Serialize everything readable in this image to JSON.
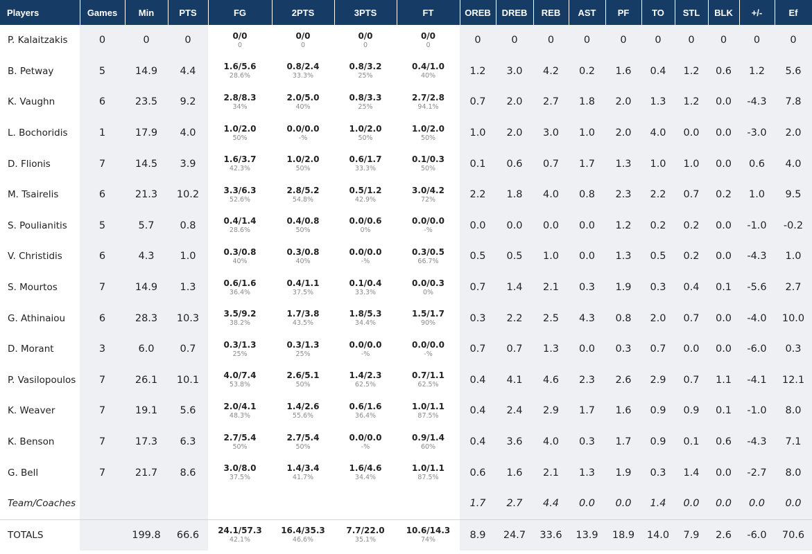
{
  "columns": [
    "Players",
    "Games",
    "Min",
    "PTS",
    "FG",
    "2PTS",
    "3PTS",
    "FT",
    "OREB",
    "DREB",
    "REB",
    "AST",
    "PF",
    "TO",
    "STL",
    "BLK",
    "+/-",
    "Ef"
  ],
  "players": [
    {
      "name": "P. Kalaitzakis",
      "games": "0",
      "min": "0",
      "pts": "0",
      "fg": {
        "made": "0/0",
        "pct": "0"
      },
      "two": {
        "made": "0/0",
        "pct": "0"
      },
      "three": {
        "made": "0/0",
        "pct": "0"
      },
      "ft": {
        "made": "0/0",
        "pct": "0"
      },
      "oreb": "0",
      "dreb": "0",
      "reb": "0",
      "ast": "0",
      "pf": "0",
      "to": "0",
      "stl": "0",
      "blk": "0",
      "pm": "0",
      "ef": "0"
    },
    {
      "name": "B. Petway",
      "games": "5",
      "min": "14.9",
      "pts": "4.4",
      "fg": {
        "made": "1.6/5.6",
        "pct": "28.6%"
      },
      "two": {
        "made": "0.8/2.4",
        "pct": "33.3%"
      },
      "three": {
        "made": "0.8/3.2",
        "pct": "25%"
      },
      "ft": {
        "made": "0.4/1.0",
        "pct": "40%"
      },
      "oreb": "1.2",
      "dreb": "3.0",
      "reb": "4.2",
      "ast": "0.2",
      "pf": "1.6",
      "to": "0.4",
      "stl": "1.2",
      "blk": "0.6",
      "pm": "1.2",
      "ef": "5.6"
    },
    {
      "name": "K. Vaughn",
      "games": "6",
      "min": "23.5",
      "pts": "9.2",
      "fg": {
        "made": "2.8/8.3",
        "pct": "34%"
      },
      "two": {
        "made": "2.0/5.0",
        "pct": "40%"
      },
      "three": {
        "made": "0.8/3.3",
        "pct": "25%"
      },
      "ft": {
        "made": "2.7/2.8",
        "pct": "94.1%"
      },
      "oreb": "0.7",
      "dreb": "2.0",
      "reb": "2.7",
      "ast": "1.8",
      "pf": "2.0",
      "to": "1.3",
      "stl": "1.2",
      "blk": "0.0",
      "pm": "-4.3",
      "ef": "7.8"
    },
    {
      "name": "L. Bochoridis",
      "games": "1",
      "min": "17.9",
      "pts": "4.0",
      "fg": {
        "made": "1.0/2.0",
        "pct": "50%"
      },
      "two": {
        "made": "0.0/0.0",
        "pct": "-%"
      },
      "three": {
        "made": "1.0/2.0",
        "pct": "50%"
      },
      "ft": {
        "made": "1.0/2.0",
        "pct": "50%"
      },
      "oreb": "1.0",
      "dreb": "2.0",
      "reb": "3.0",
      "ast": "1.0",
      "pf": "2.0",
      "to": "4.0",
      "stl": "0.0",
      "blk": "0.0",
      "pm": "-3.0",
      "ef": "2.0"
    },
    {
      "name": "D. Flionis",
      "games": "7",
      "min": "14.5",
      "pts": "3.9",
      "fg": {
        "made": "1.6/3.7",
        "pct": "42.3%"
      },
      "two": {
        "made": "1.0/2.0",
        "pct": "50%"
      },
      "three": {
        "made": "0.6/1.7",
        "pct": "33.3%"
      },
      "ft": {
        "made": "0.1/0.3",
        "pct": "50%"
      },
      "oreb": "0.1",
      "dreb": "0.6",
      "reb": "0.7",
      "ast": "1.7",
      "pf": "1.3",
      "to": "1.0",
      "stl": "1.0",
      "blk": "0.0",
      "pm": "0.6",
      "ef": "4.0"
    },
    {
      "name": "M. Tsairelis",
      "games": "6",
      "min": "21.3",
      "pts": "10.2",
      "fg": {
        "made": "3.3/6.3",
        "pct": "52.6%"
      },
      "two": {
        "made": "2.8/5.2",
        "pct": "54.8%"
      },
      "three": {
        "made": "0.5/1.2",
        "pct": "42.9%"
      },
      "ft": {
        "made": "3.0/4.2",
        "pct": "72%"
      },
      "oreb": "2.2",
      "dreb": "1.8",
      "reb": "4.0",
      "ast": "0.8",
      "pf": "2.3",
      "to": "2.2",
      "stl": "0.7",
      "blk": "0.2",
      "pm": "1.0",
      "ef": "9.5"
    },
    {
      "name": "S. Poulianitis",
      "games": "5",
      "min": "5.7",
      "pts": "0.8",
      "fg": {
        "made": "0.4/1.4",
        "pct": "28.6%"
      },
      "two": {
        "made": "0.4/0.8",
        "pct": "50%"
      },
      "three": {
        "made": "0.0/0.6",
        "pct": "0%"
      },
      "ft": {
        "made": "0.0/0.0",
        "pct": "-%"
      },
      "oreb": "0.0",
      "dreb": "0.0",
      "reb": "0.0",
      "ast": "0.0",
      "pf": "1.2",
      "to": "0.2",
      "stl": "0.2",
      "blk": "0.0",
      "pm": "-1.0",
      "ef": "-0.2"
    },
    {
      "name": "V. Christidis",
      "games": "6",
      "min": "4.3",
      "pts": "1.0",
      "fg": {
        "made": "0.3/0.8",
        "pct": "40%"
      },
      "two": {
        "made": "0.3/0.8",
        "pct": "40%"
      },
      "three": {
        "made": "0.0/0.0",
        "pct": "-%"
      },
      "ft": {
        "made": "0.3/0.5",
        "pct": "66.7%"
      },
      "oreb": "0.5",
      "dreb": "0.5",
      "reb": "1.0",
      "ast": "0.0",
      "pf": "1.3",
      "to": "0.5",
      "stl": "0.2",
      "blk": "0.0",
      "pm": "-4.3",
      "ef": "1.0"
    },
    {
      "name": "S. Mourtos",
      "games": "7",
      "min": "14.9",
      "pts": "1.3",
      "fg": {
        "made": "0.6/1.6",
        "pct": "36.4%"
      },
      "two": {
        "made": "0.4/1.1",
        "pct": "37.5%"
      },
      "three": {
        "made": "0.1/0.4",
        "pct": "33.3%"
      },
      "ft": {
        "made": "0.0/0.3",
        "pct": "0%"
      },
      "oreb": "0.7",
      "dreb": "1.4",
      "reb": "2.1",
      "ast": "0.3",
      "pf": "1.9",
      "to": "0.3",
      "stl": "0.4",
      "blk": "0.1",
      "pm": "-5.6",
      "ef": "2.7"
    },
    {
      "name": "G. Athinaiou",
      "games": "6",
      "min": "28.3",
      "pts": "10.3",
      "fg": {
        "made": "3.5/9.2",
        "pct": "38.2%"
      },
      "two": {
        "made": "1.7/3.8",
        "pct": "43.5%"
      },
      "three": {
        "made": "1.8/5.3",
        "pct": "34.4%"
      },
      "ft": {
        "made": "1.5/1.7",
        "pct": "90%"
      },
      "oreb": "0.3",
      "dreb": "2.2",
      "reb": "2.5",
      "ast": "4.3",
      "pf": "0.8",
      "to": "2.0",
      "stl": "0.7",
      "blk": "0.0",
      "pm": "-4.0",
      "ef": "10.0"
    },
    {
      "name": "D. Morant",
      "games": "3",
      "min": "6.0",
      "pts": "0.7",
      "fg": {
        "made": "0.3/1.3",
        "pct": "25%"
      },
      "two": {
        "made": "0.3/1.3",
        "pct": "25%"
      },
      "three": {
        "made": "0.0/0.0",
        "pct": "-%"
      },
      "ft": {
        "made": "0.0/0.0",
        "pct": "-%"
      },
      "oreb": "0.7",
      "dreb": "0.7",
      "reb": "1.3",
      "ast": "0.0",
      "pf": "0.3",
      "to": "0.7",
      "stl": "0.0",
      "blk": "0.0",
      "pm": "-6.0",
      "ef": "0.3"
    },
    {
      "name": "P. Vasilopoulos",
      "games": "7",
      "min": "26.1",
      "pts": "10.1",
      "fg": {
        "made": "4.0/7.4",
        "pct": "53.8%"
      },
      "two": {
        "made": "2.6/5.1",
        "pct": "50%"
      },
      "three": {
        "made": "1.4/2.3",
        "pct": "62.5%"
      },
      "ft": {
        "made": "0.7/1.1",
        "pct": "62.5%"
      },
      "oreb": "0.4",
      "dreb": "4.1",
      "reb": "4.6",
      "ast": "2.3",
      "pf": "2.6",
      "to": "2.9",
      "stl": "0.7",
      "blk": "1.1",
      "pm": "-4.1",
      "ef": "12.1"
    },
    {
      "name": "K. Weaver",
      "games": "7",
      "min": "19.1",
      "pts": "5.6",
      "fg": {
        "made": "2.0/4.1",
        "pct": "48.3%"
      },
      "two": {
        "made": "1.4/2.6",
        "pct": "55.6%"
      },
      "three": {
        "made": "0.6/1.6",
        "pct": "36.4%"
      },
      "ft": {
        "made": "1.0/1.1",
        "pct": "87.5%"
      },
      "oreb": "0.4",
      "dreb": "2.4",
      "reb": "2.9",
      "ast": "1.7",
      "pf": "1.6",
      "to": "0.9",
      "stl": "0.9",
      "blk": "0.1",
      "pm": "-1.0",
      "ef": "8.0"
    },
    {
      "name": "K. Benson",
      "games": "7",
      "min": "17.3",
      "pts": "6.3",
      "fg": {
        "made": "2.7/5.4",
        "pct": "50%"
      },
      "two": {
        "made": "2.7/5.4",
        "pct": "50%"
      },
      "three": {
        "made": "0.0/0.0",
        "pct": "-%"
      },
      "ft": {
        "made": "0.9/1.4",
        "pct": "60%"
      },
      "oreb": "0.4",
      "dreb": "3.6",
      "reb": "4.0",
      "ast": "0.3",
      "pf": "1.7",
      "to": "0.9",
      "stl": "0.1",
      "blk": "0.6",
      "pm": "-4.3",
      "ef": "7.1"
    },
    {
      "name": "G. Bell",
      "games": "7",
      "min": "21.7",
      "pts": "8.6",
      "fg": {
        "made": "3.0/8.0",
        "pct": "37.5%"
      },
      "two": {
        "made": "1.4/3.4",
        "pct": "41.7%"
      },
      "three": {
        "made": "1.6/4.6",
        "pct": "34.4%"
      },
      "ft": {
        "made": "1.0/1.1",
        "pct": "87.5%"
      },
      "oreb": "0.6",
      "dreb": "1.6",
      "reb": "2.1",
      "ast": "1.3",
      "pf": "1.9",
      "to": "0.3",
      "stl": "1.4",
      "blk": "0.0",
      "pm": "-2.7",
      "ef": "8.0"
    }
  ],
  "team": {
    "name": "Team/Coaches",
    "oreb": "1.7",
    "dreb": "2.7",
    "reb": "4.4",
    "ast": "0.0",
    "pf": "0.0",
    "to": "1.4",
    "stl": "0.0",
    "blk": "0.0",
    "pm": "0.0",
    "ef": "0.0"
  },
  "totals": {
    "name": "TOTALS",
    "games": "",
    "min": "199.8",
    "pts": "66.6",
    "fg": {
      "made": "24.1/57.3",
      "pct": "42.1%"
    },
    "two": {
      "made": "16.4/35.3",
      "pct": "46.6%"
    },
    "three": {
      "made": "7.7/22.0",
      "pct": "35.1%"
    },
    "ft": {
      "made": "10.6/14.3",
      "pct": "74%"
    },
    "oreb": "8.9",
    "dreb": "24.7",
    "reb": "33.6",
    "ast": "13.9",
    "pf": "18.9",
    "to": "14.0",
    "stl": "7.9",
    "blk": "2.6",
    "pm": "-6.0",
    "ef": "70.6"
  }
}
